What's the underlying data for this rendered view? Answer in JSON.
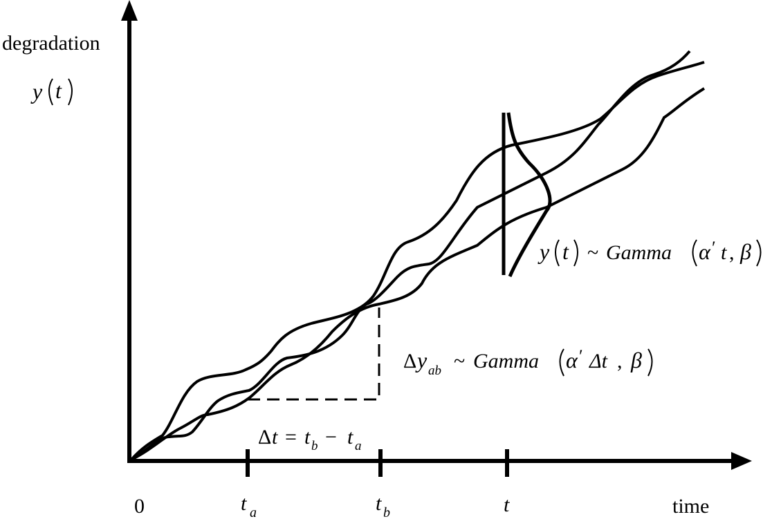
{
  "labels": {
    "y_axis_word": "degradation",
    "y_axis_func": "y",
    "y_axis_arg": "t",
    "x_axis_word": "time",
    "origin": "0",
    "tick_ta_main": "t",
    "tick_ta_sub": "a",
    "tick_tb_main": "t",
    "tick_tb_sub": "b",
    "tick_t": "t"
  },
  "annotations": {
    "delta_t_eq": {
      "delta": "Δ",
      "t": "t",
      "eq": "=",
      "tb": "t",
      "tb_sub": "b",
      "minus": "−",
      "ta": "t",
      "ta_sub": "a"
    },
    "delta_y_dist": {
      "delta": "Δ",
      "y": "y",
      "sub": "ab",
      "tilde": "~",
      "dist": "Gamma",
      "lp": "(",
      "alpha": "α",
      "prime": "′",
      "dt": "Δt",
      "comma": ",",
      "beta": "β",
      "rp": ")"
    },
    "y_dist": {
      "y": "y",
      "lp1": "(",
      "t": "t",
      "rp1": ")",
      "tilde": "~",
      "dist": "Gamma",
      "lp": "(",
      "alpha": "α",
      "prime": "′",
      "t2": "t",
      "comma": ",",
      "beta": "β",
      "rp": ")"
    }
  }
}
